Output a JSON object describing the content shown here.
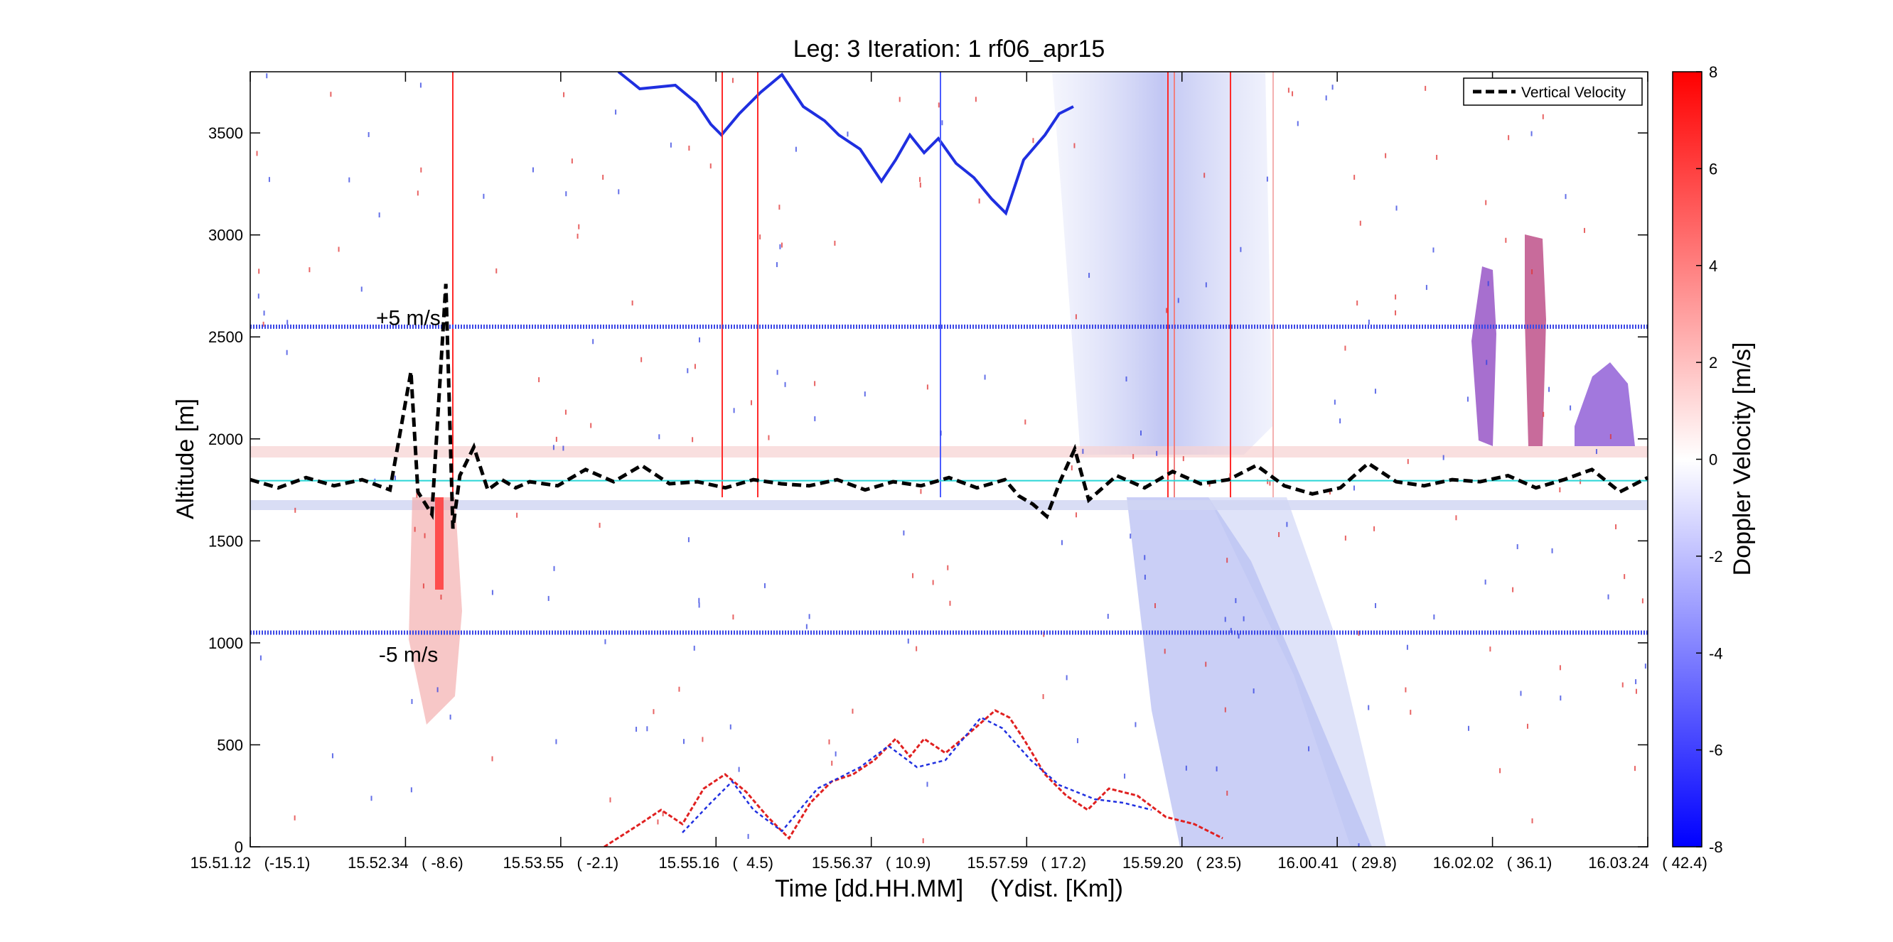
{
  "chart_data": {
    "type": "heatmap",
    "title": "Leg: 3  Iteration: 1  rf06_apr15",
    "xlabel": "Time [dd.HH.MM]    (Ydist. [Km])",
    "ylabel": "Altitude [m]",
    "colorbar_label": "Doppler Velocity [m/s]",
    "xlim": [
      0,
      1
    ],
    "ylim": [
      0,
      3800
    ],
    "clim": [
      -8,
      8
    ],
    "x_ticks": [
      {
        "x": 0.0,
        "label": "15.51.12   (-15.1)"
      },
      {
        "x": 0.1111,
        "label": "15.52.34   ( -8.6)"
      },
      {
        "x": 0.2222,
        "label": "15.53.55   ( -2.1)"
      },
      {
        "x": 0.3333,
        "label": "15.55.16   (  4.5)"
      },
      {
        "x": 0.4444,
        "label": "15.56.37   ( 10.9)"
      },
      {
        "x": 0.5556,
        "label": "15.57.59   ( 17.2)"
      },
      {
        "x": 0.6667,
        "label": "15.59.20   ( 23.5)"
      },
      {
        "x": 0.7778,
        "label": "16.00.41   ( 29.8)"
      },
      {
        "x": 0.8889,
        "label": "16.02.02   ( 36.1)"
      },
      {
        "x": 1.0,
        "label": "16.03.24   ( 42.4)"
      }
    ],
    "y_ticks": [
      0,
      500,
      1000,
      1500,
      2000,
      2500,
      3000,
      3500
    ],
    "colorbar_ticks": [
      -8,
      -6,
      -4,
      -2,
      0,
      2,
      4,
      6,
      8
    ],
    "legend": {
      "placement": "top-right",
      "entries": [
        "Vertical Velocity"
      ]
    },
    "annotations": [
      {
        "text": "+5 m/s",
        "x": 0.09,
        "y": 2600
      },
      {
        "text": "-5 m/s",
        "x": 0.092,
        "y": 950
      }
    ],
    "reference_lines": {
      "plus5_altitude": 2550,
      "minus5_altitude": 1050,
      "zero_altitude": 1795
    },
    "series": [
      {
        "name": "Vertical Velocity",
        "style": "dashed-black",
        "x": [
          0.0,
          0.02,
          0.04,
          0.06,
          0.08,
          0.1,
          0.115,
          0.12,
          0.13,
          0.14,
          0.145,
          0.15,
          0.16,
          0.17,
          0.18,
          0.19,
          0.2,
          0.22,
          0.24,
          0.26,
          0.28,
          0.3,
          0.32,
          0.34,
          0.36,
          0.38,
          0.4,
          0.42,
          0.44,
          0.46,
          0.48,
          0.5,
          0.52,
          0.54,
          0.55,
          0.56,
          0.57,
          0.58,
          0.59,
          0.6,
          0.62,
          0.64,
          0.66,
          0.68,
          0.7,
          0.72,
          0.74,
          0.76,
          0.78,
          0.8,
          0.82,
          0.84,
          0.86,
          0.88,
          0.9,
          0.92,
          0.94,
          0.96,
          0.98,
          1.0
        ],
        "y": [
          1800,
          1760,
          1810,
          1770,
          1800,
          1750,
          2330,
          1740,
          1630,
          2760,
          1560,
          1820,
          1960,
          1750,
          1800,
          1760,
          1790,
          1770,
          1850,
          1790,
          1870,
          1780,
          1790,
          1760,
          1800,
          1780,
          1770,
          1800,
          1750,
          1790,
          1770,
          1810,
          1760,
          1800,
          1720,
          1680,
          1620,
          1800,
          1950,
          1700,
          1820,
          1760,
          1840,
          1780,
          1800,
          1870,
          1770,
          1730,
          1760,
          1880,
          1790,
          1770,
          1800,
          1790,
          1820,
          1760,
          1800,
          1850,
          1740,
          1810
        ]
      }
    ]
  }
}
